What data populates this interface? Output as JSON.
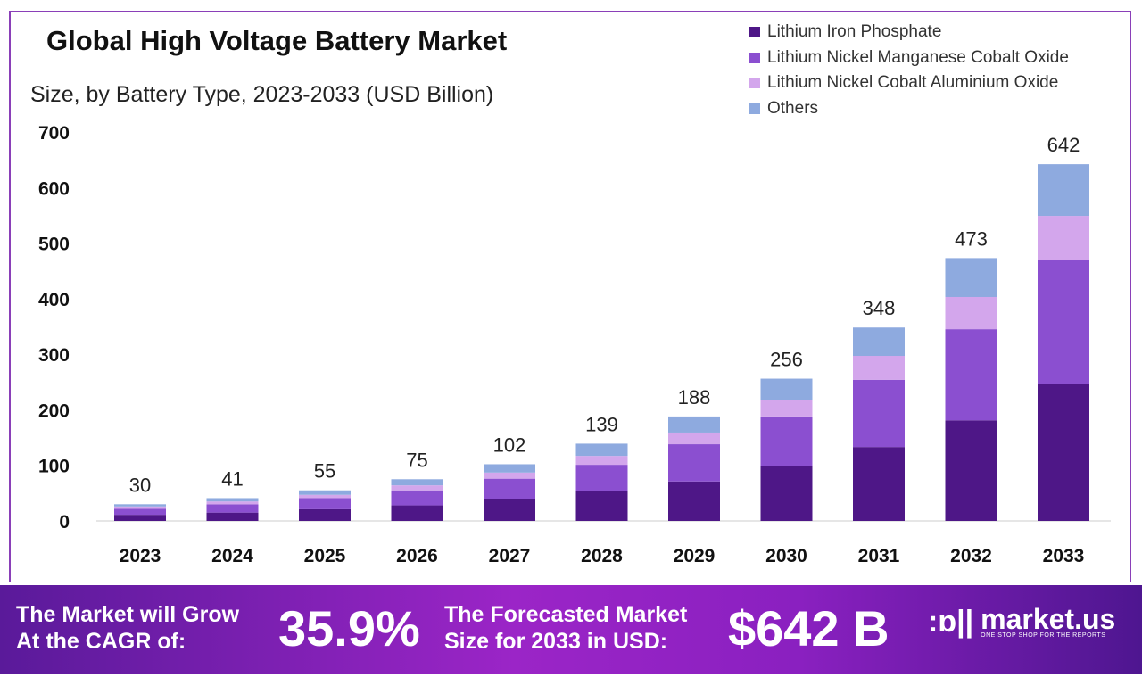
{
  "chart_data": {
    "type": "bar",
    "stacked": true,
    "title": "Global High Voltage Battery Market",
    "subtitle": "Size, by Battery Type, 2023-2033 (USD Billion)",
    "categories": [
      "2023",
      "2024",
      "2025",
      "2026",
      "2027",
      "2028",
      "2029",
      "2030",
      "2031",
      "2032",
      "2033"
    ],
    "totals": [
      30,
      41,
      55,
      75,
      102,
      139,
      188,
      256,
      348,
      473,
      642
    ],
    "series": [
      {
        "name": "Lithium Iron Phosphate",
        "color": "#4e1787",
        "values": [
          11,
          15,
          21,
          28,
          39,
          53,
          71,
          98,
          133,
          181,
          247
        ]
      },
      {
        "name": "Lithium Nickel Manganese Cobalt Oxide",
        "color": "#8b4fd0",
        "values": [
          11,
          15,
          20,
          27,
          37,
          48,
          67,
          90,
          121,
          164,
          223
        ]
      },
      {
        "name": "Lithium Nickel Cobalt Aluminium Oxide",
        "color": "#d3a6ec",
        "values": [
          4,
          5,
          6,
          9,
          11,
          16,
          21,
          30,
          43,
          58,
          79
        ]
      },
      {
        "name": "Others",
        "color": "#8eaadf",
        "values": [
          4,
          6,
          8,
          11,
          15,
          22,
          29,
          38,
          51,
          70,
          93
        ]
      }
    ],
    "yticks": [
      0,
      100,
      200,
      300,
      400,
      500,
      600,
      700
    ],
    "ylim": [
      0,
      700
    ],
    "grid": false,
    "legend_position": "top-right"
  },
  "banner": {
    "cagr_label_1": "The Market will Grow",
    "cagr_label_2": "At the CAGR of:",
    "cagr_value": "35.9%",
    "forecast_label_1": "The Forecasted Market",
    "forecast_label_2": "Size for 2033 in USD:",
    "forecast_value": "$642 B",
    "brand": "market.us",
    "brand_tagline": "ONE STOP SHOP FOR THE REPORTS"
  }
}
